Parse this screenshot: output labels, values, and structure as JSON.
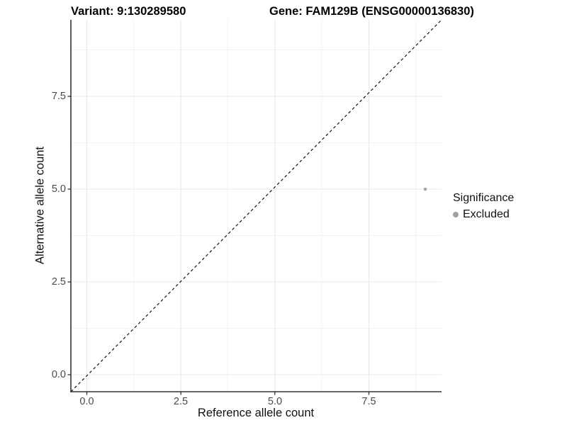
{
  "chart_data": {
    "type": "scatter",
    "titles": {
      "left": "Variant: 9:130289580",
      "right": "Gene: FAM129B (ENSG00000136830)"
    },
    "xlabel": "Reference allele count",
    "ylabel": "Alternative allele count",
    "x_tick_labels": [
      "0.0",
      "2.5",
      "5.0",
      "7.5"
    ],
    "y_tick_labels": [
      "0.0",
      "2.5",
      "5.0",
      "7.5"
    ],
    "x_tick_values": [
      0,
      2.5,
      5,
      7.5
    ],
    "y_tick_values": [
      0,
      2.5,
      5,
      7.5
    ],
    "x_minor_values": [
      1.25,
      3.75,
      6.25,
      8.75
    ],
    "y_minor_values": [
      1.25,
      3.75,
      6.25,
      8.75
    ],
    "xlim": [
      -0.42,
      9.43
    ],
    "ylim": [
      -0.46,
      9.62
    ],
    "grid": {
      "major": true,
      "minor": true
    },
    "identity_line": {
      "equation": "y = x",
      "style": "dashed",
      "color": "#000000"
    },
    "points": [
      {
        "x": 9,
        "y": 5,
        "group": "Excluded"
      }
    ],
    "point_color": "#a8a8a8",
    "legend": {
      "title": "Significance",
      "position": "right",
      "items": [
        {
          "label": "Excluded",
          "color": "#a0a0a0"
        }
      ]
    },
    "colors": {
      "axis_line": "#333333",
      "tick_mark": "#333333",
      "grid_major": "#e8e8e8",
      "grid_minor": "#f3f3f3",
      "background": "#ffffff"
    }
  }
}
